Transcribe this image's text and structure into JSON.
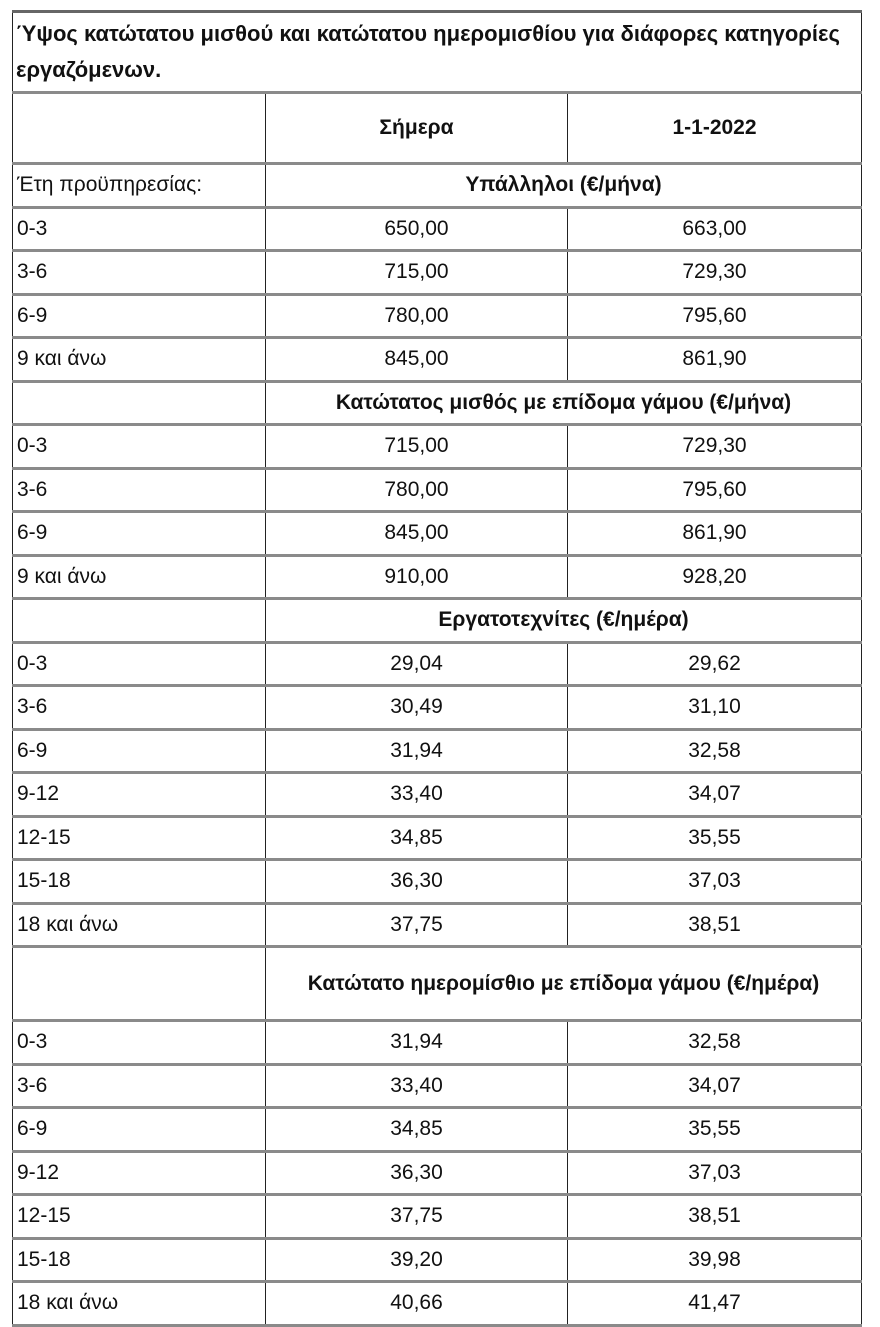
{
  "title": "Ύψος κατώτατου μισθού και κατώτατου ημερομισθίου για διάφορες κατηγορίες εργαζόμενων.",
  "columns": [
    "",
    "Σήμερα",
    "1-1-2022"
  ],
  "years_label": "Έτη προϋπηρεσίας:",
  "sections": [
    {
      "heading": "Υπάλληλοι (€/μήνα)",
      "rows": [
        [
          "0-3",
          "650,00",
          "663,00"
        ],
        [
          "3-6",
          "715,00",
          "729,30"
        ],
        [
          "6-9",
          "780,00",
          "795,60"
        ],
        [
          "9 και άνω",
          "845,00",
          "861,90"
        ]
      ]
    },
    {
      "heading": "Κατώτατος μισθός με επίδομα γάμου (€/μήνα)",
      "rows": [
        [
          "0-3",
          "715,00",
          "729,30"
        ],
        [
          "3-6",
          "780,00",
          "795,60"
        ],
        [
          "6-9",
          "845,00",
          "861,90"
        ],
        [
          "9 και άνω",
          "910,00",
          "928,20"
        ]
      ]
    },
    {
      "heading": "Εργατοτεχνίτες (€/ημέρα)",
      "rows": [
        [
          "0-3",
          "29,04",
          "29,62"
        ],
        [
          "3-6",
          "30,49",
          "31,10"
        ],
        [
          "6-9",
          "31,94",
          "32,58"
        ],
        [
          "9-12",
          "33,40",
          "34,07"
        ],
        [
          "12-15",
          "34,85",
          "35,55"
        ],
        [
          "15-18",
          "36,30",
          "37,03"
        ],
        [
          "18 και άνω",
          "37,75",
          "38,51"
        ]
      ]
    },
    {
      "heading": "Κατώτατο ημερομίσθιο με επίδομα γάμου (€/ημέρα)",
      "rows": [
        [
          "0-3",
          "31,94",
          "32,58"
        ],
        [
          "3-6",
          "33,40",
          "34,07"
        ],
        [
          "6-9",
          "34,85",
          "35,55"
        ],
        [
          "9-12",
          "36,30",
          "37,03"
        ],
        [
          "12-15",
          "37,75",
          "38,51"
        ],
        [
          "15-18",
          "39,20",
          "39,98"
        ],
        [
          "18 και άνω",
          "40,66",
          "41,47"
        ]
      ]
    }
  ]
}
